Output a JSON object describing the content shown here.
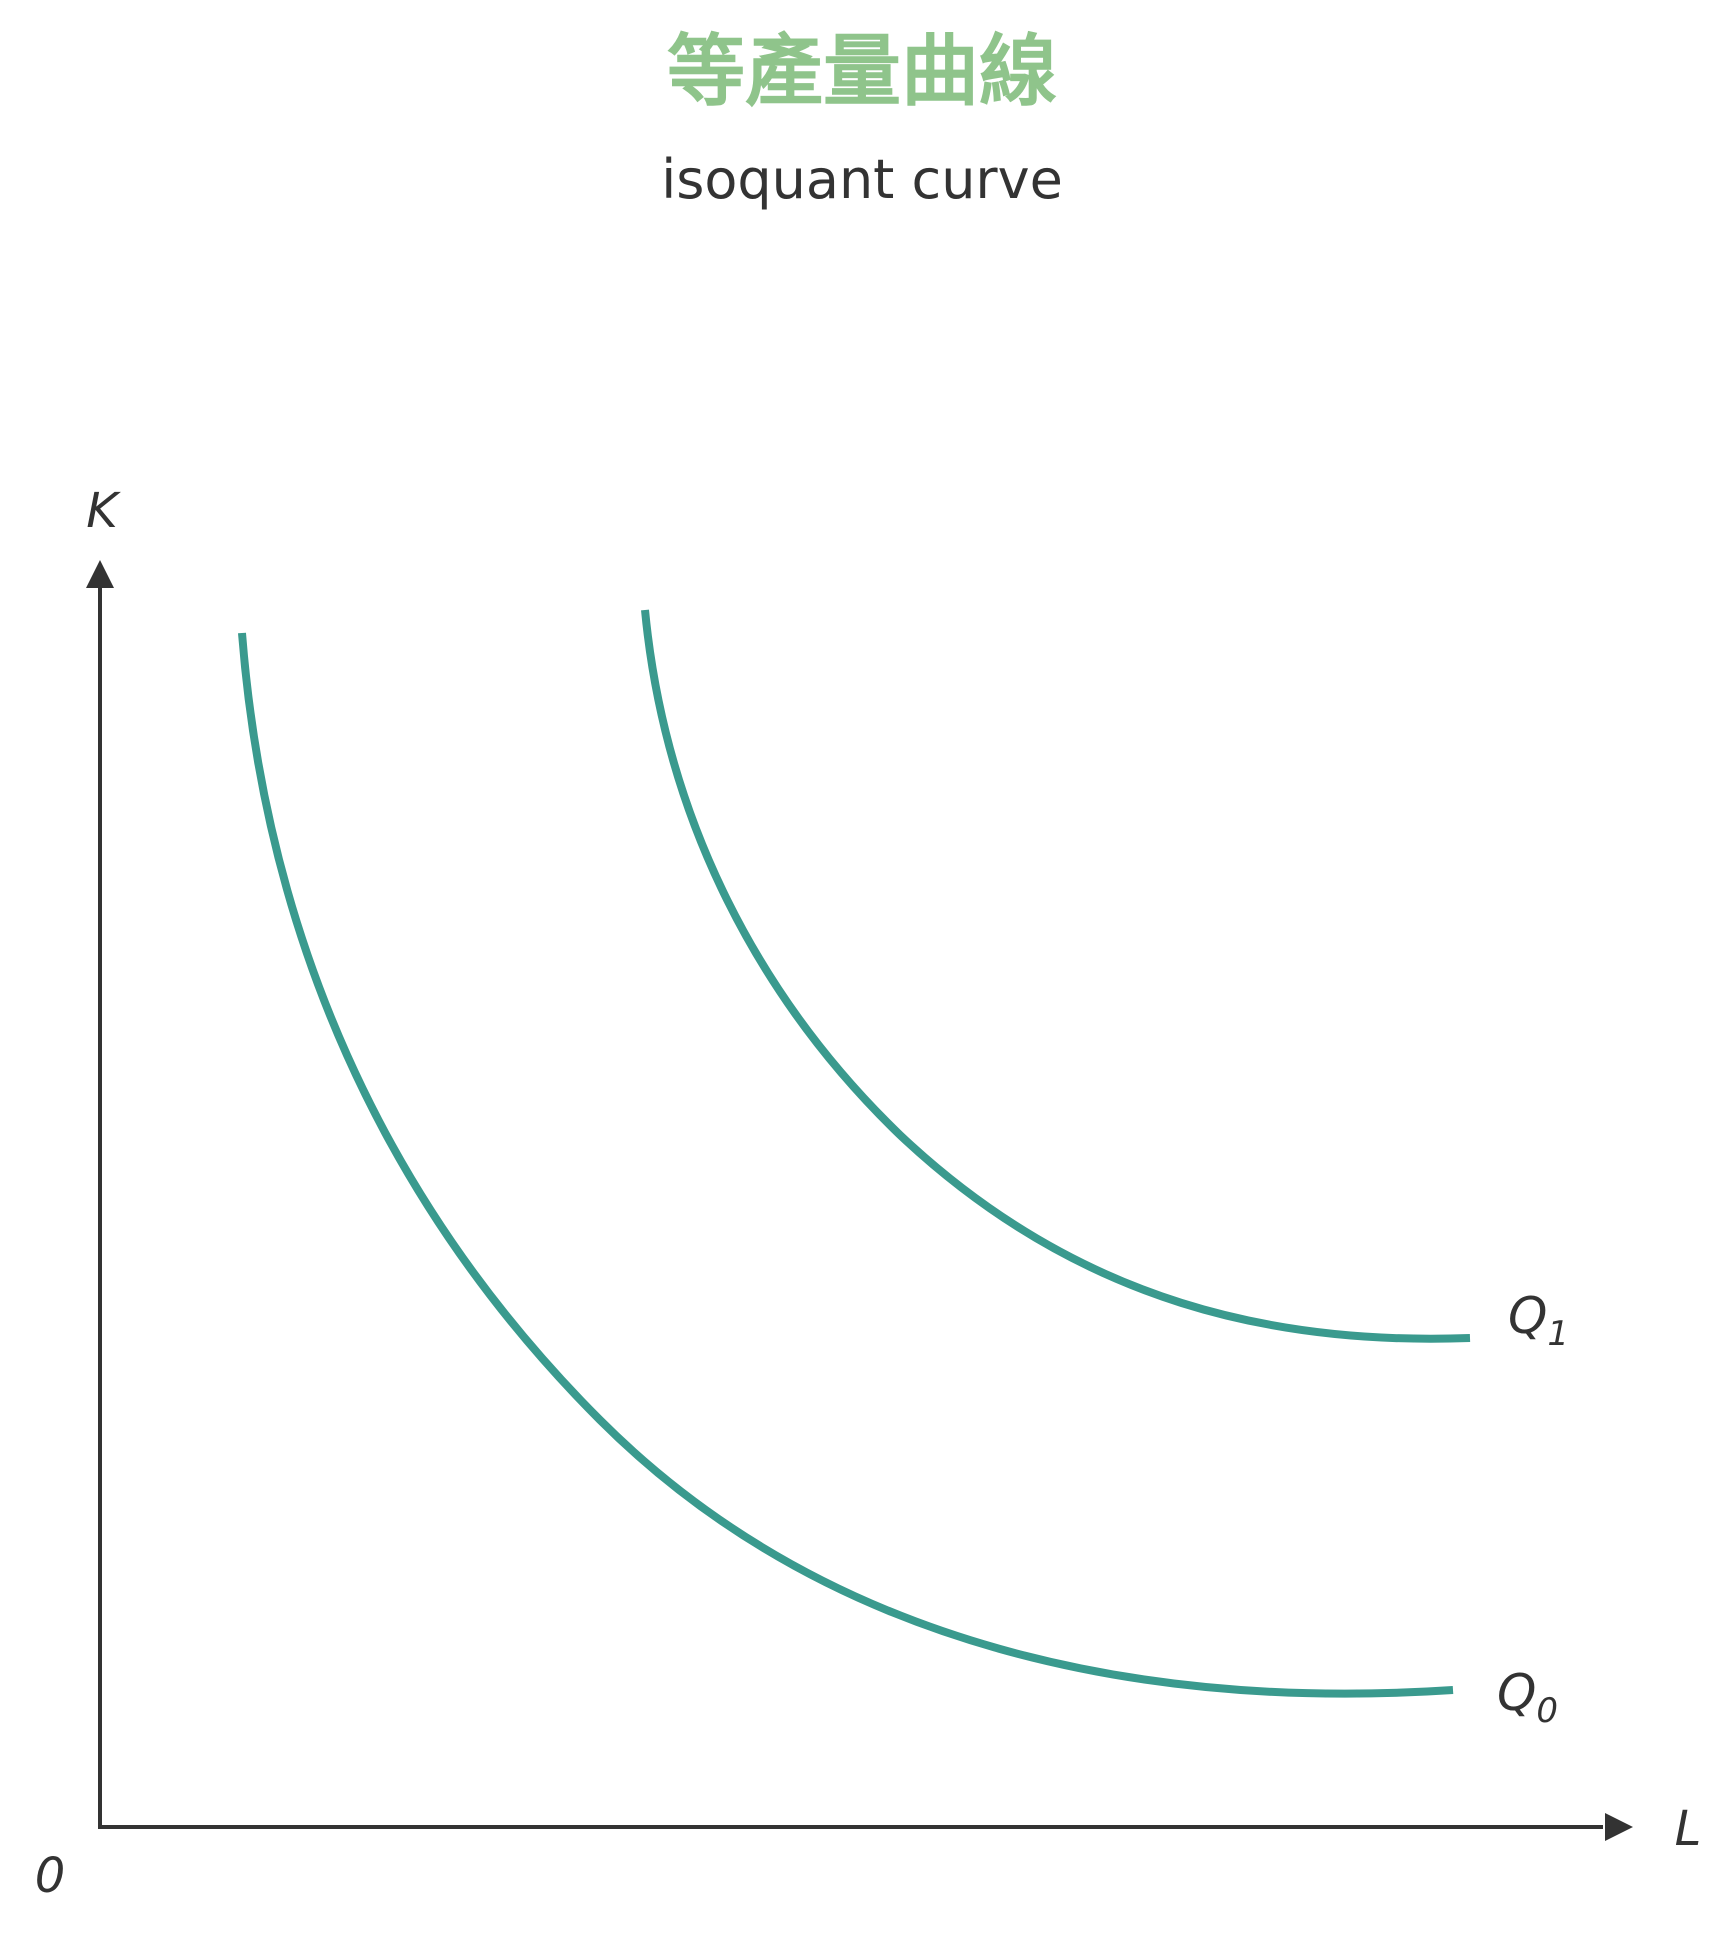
{
  "title": "等產量曲線",
  "subtitle": "isoquant curve",
  "colors": {
    "title": "#8fc48b",
    "text": "#333333",
    "axis": "#333333",
    "curve": "#3a9a8e"
  },
  "axes": {
    "y_label": "K",
    "x_label": "L",
    "origin_label": "0"
  },
  "curves": [
    {
      "id": "q0",
      "label_main": "Q",
      "label_sub": "0"
    },
    {
      "id": "q1",
      "label_main": "Q",
      "label_sub": "1"
    }
  ]
}
